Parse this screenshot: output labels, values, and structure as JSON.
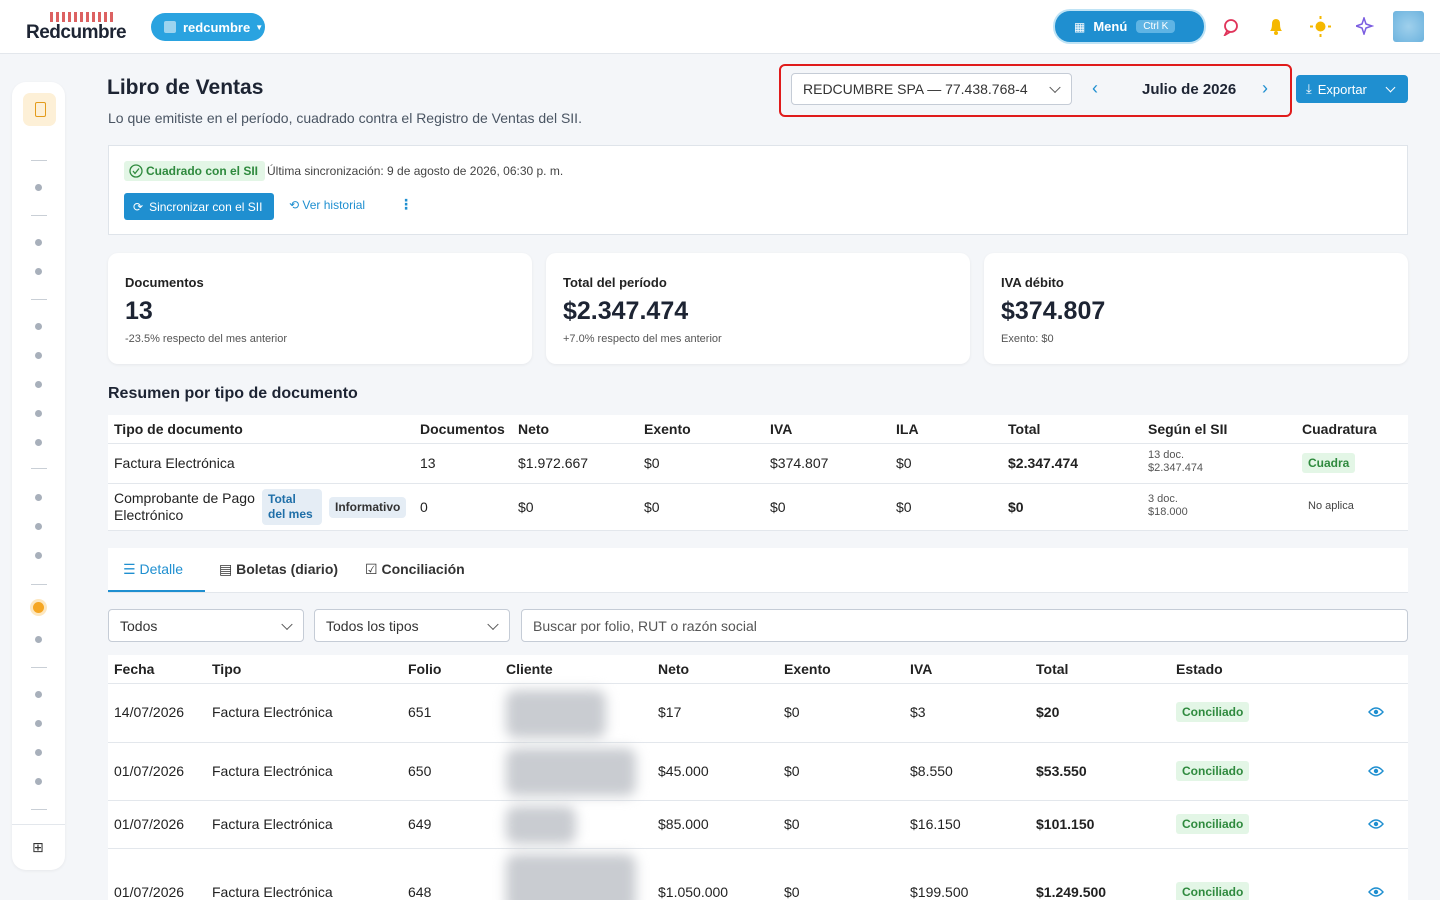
{
  "header": {
    "logo": "Redcumbre",
    "org": "redcumbre",
    "menu": "Menú",
    "shortcut": "Ctrl K"
  },
  "page": {
    "title": "Libro de Ventas",
    "subtitle": "Lo que emitiste en el período, cuadrado contra el Registro de Ventas del SII."
  },
  "toolbar": {
    "company": "REDCUMBRE SPA — 77.438.768-4",
    "period": "Julio de 2026",
    "export": "Exportar"
  },
  "sync": {
    "status": "Cuadrado con el SII",
    "last": "Última sincronización: 9 de agosto de 2026, 06:30 p. m.",
    "button": "Sincronizar con el SII",
    "history": "Ver historial"
  },
  "kpis": [
    {
      "label": "Documentos",
      "value": "13",
      "note": "-23.5% respecto del mes anterior"
    },
    {
      "label": "Total del período",
      "value": "$2.347.474",
      "note": "+7.0% respecto del mes anterior"
    },
    {
      "label": "IVA débito",
      "value": "$374.807",
      "note": "Exento: $0"
    }
  ],
  "summary": {
    "title": "Resumen por tipo de documento",
    "columns": [
      "Tipo de documento",
      "Documentos",
      "Neto",
      "Exento",
      "IVA",
      "ILA",
      "Total",
      "Según el SII",
      "Cuadratura"
    ],
    "rows": [
      {
        "type": "Factura Electrónica",
        "tags": [],
        "cells": [
          "13",
          "$1.972.667",
          "$0",
          "$374.807",
          "$0",
          "$2.347.474"
        ],
        "sii": [
          "13 doc.",
          "$2.347.474"
        ],
        "status": "Cuadra"
      },
      {
        "type": "Comprobante de Pago Electrónico",
        "tags": [
          "Total del mes",
          "Informativo"
        ],
        "cells": [
          "0",
          "$0",
          "$0",
          "$0",
          "$0",
          "$0"
        ],
        "sii": [
          "3 doc.",
          "$18.000"
        ],
        "status": "No aplica"
      }
    ]
  },
  "tabs": [
    "Detalle",
    "Boletas (diario)",
    "Conciliación"
  ],
  "filters": {
    "state": "Todos",
    "type": "Todos los tipos",
    "search": "Buscar por folio, RUT o razón social"
  },
  "detail": {
    "columns": [
      "Fecha",
      "Tipo",
      "Folio",
      "Cliente",
      "Neto",
      "Exento",
      "IVA",
      "Total",
      "Estado"
    ],
    "rows": [
      [
        "14/07/2026",
        "Factura Electrónica",
        "651",
        "$17",
        "$0",
        "$3",
        "$20",
        "Conciliado"
      ],
      [
        "01/07/2026",
        "Factura Electrónica",
        "650",
        "$45.000",
        "$0",
        "$8.550",
        "$53.550",
        "Conciliado"
      ],
      [
        "01/07/2026",
        "Factura Electrónica",
        "649",
        "$85.000",
        "$0",
        "$16.150",
        "$101.150",
        "Conciliado"
      ],
      [
        "01/07/2026",
        "Factura Electrónica",
        "648",
        "$1.050.000",
        "$0",
        "$199.500",
        "$1.249.500",
        "Conciliado"
      ]
    ]
  }
}
